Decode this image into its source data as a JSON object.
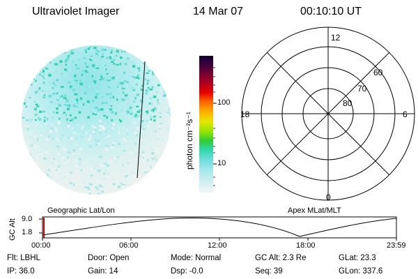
{
  "header": {
    "instrument": "Ultraviolet Imager",
    "date": "14 Mar 07",
    "time": "00:10:10 UT"
  },
  "colorbar": {
    "unit_label": "photon cm⁻²s⁻¹",
    "ticks": [
      "100",
      "10"
    ]
  },
  "polar_plot": {
    "mlt_labels": {
      "top": "12",
      "left": "18",
      "right": "6",
      "bottom": "0"
    },
    "lat_labels": [
      "60",
      "70",
      "80"
    ]
  },
  "timeline": {
    "axis_label": "GC Alt",
    "y_ticks": [
      "9.0",
      "1.8"
    ],
    "left_title": "Geographic Lat/Lon",
    "right_title": "Apex MLat/MLT",
    "x_ticks": [
      "00:00",
      "06:00",
      "12:00",
      "18:00",
      "23:59"
    ],
    "colors": {
      "marker": "#cc0000",
      "curve": "#000000"
    }
  },
  "info": {
    "flt": "Flt: LBHL",
    "ip": "IP: 36.0",
    "door": "Door: Open",
    "gain": "Gain: 14",
    "mode": "Mode: Normal",
    "dsp": "Dsp:   -0.0",
    "gcalt": "GC Alt: 2.3 Re",
    "seq": "Seq: 39",
    "glat": "GLat:  23.3",
    "glon": "GLon: 337.6"
  },
  "colors": {
    "scale": [
      "#eef6f6",
      "#cfeef0",
      "#a8e8ec",
      "#6fdcdc",
      "#30d6b0",
      "#33cc33",
      "#99e600",
      "#e6e600",
      "#ffb000",
      "#ff6a00",
      "#e80000",
      "#b00020",
      "#700030",
      "#3a0040",
      "#10002a"
    ]
  }
}
